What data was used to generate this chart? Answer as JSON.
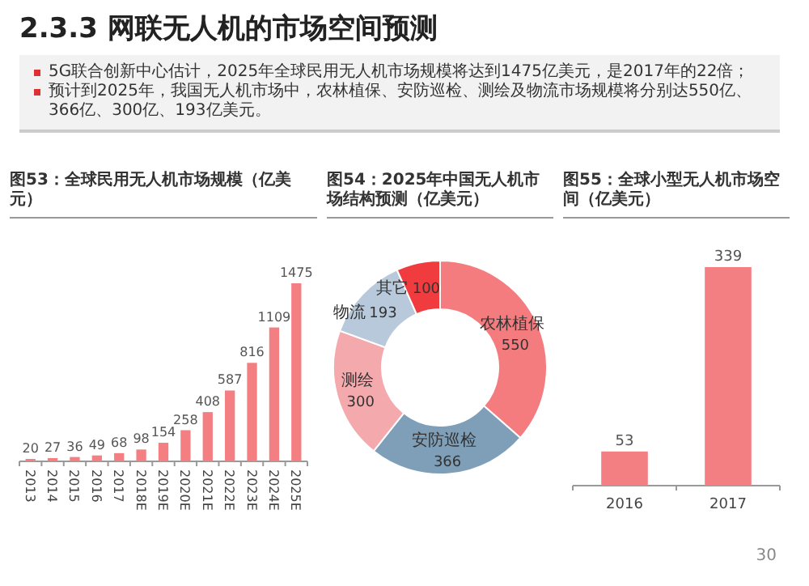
{
  "chart_data": [
    {
      "type": "other",
      "title": "2.3.3 网联无人机的市场空间预测",
      "annotations": [
        "5G联合创新中心估计，2025年全球民用无人机市场规模将达到1475亿美元，是2017年的22倍；",
        "预计到2025年，我国无人机市场中，农林植保、安防巡检、测绘及物流市场规模将分别达550亿、366亿、300亿、193亿美元。",
        "30"
      ]
    },
    {
      "type": "bar",
      "title": "图53：全球民用无人机市场规模（亿美元）",
      "categories": [
        "2013",
        "2014",
        "2015",
        "2016",
        "2017",
        "2018E",
        "2019E",
        "2020E",
        "2021E",
        "2022E",
        "2023E",
        "2024E",
        "2025E"
      ],
      "values": [
        20,
        27,
        36,
        49,
        68,
        98,
        154,
        258,
        408,
        587,
        816,
        1109,
        1475
      ],
      "color": "#f47f83",
      "data_labels": true
    },
    {
      "type": "donut",
      "title": "图54：2025年中国无人机市场结构预测（亿美元）",
      "categories": [
        "农林植保",
        "安防巡检",
        "测绘",
        "物流",
        "其它"
      ],
      "values": [
        550,
        366,
        300,
        193,
        100
      ],
      "colors": [
        "#f47c7f",
        "#7f9fb8",
        "#f4a9ad",
        "#b7c9da",
        "#f03c3e"
      ],
      "data_labels": true
    },
    {
      "type": "bar",
      "title": "图55：全球小型无人机市场空间（亿美元）",
      "categories": [
        "2016",
        "2017"
      ],
      "values": [
        53,
        339
      ],
      "color": "#f47f83",
      "data_labels": true
    }
  ]
}
